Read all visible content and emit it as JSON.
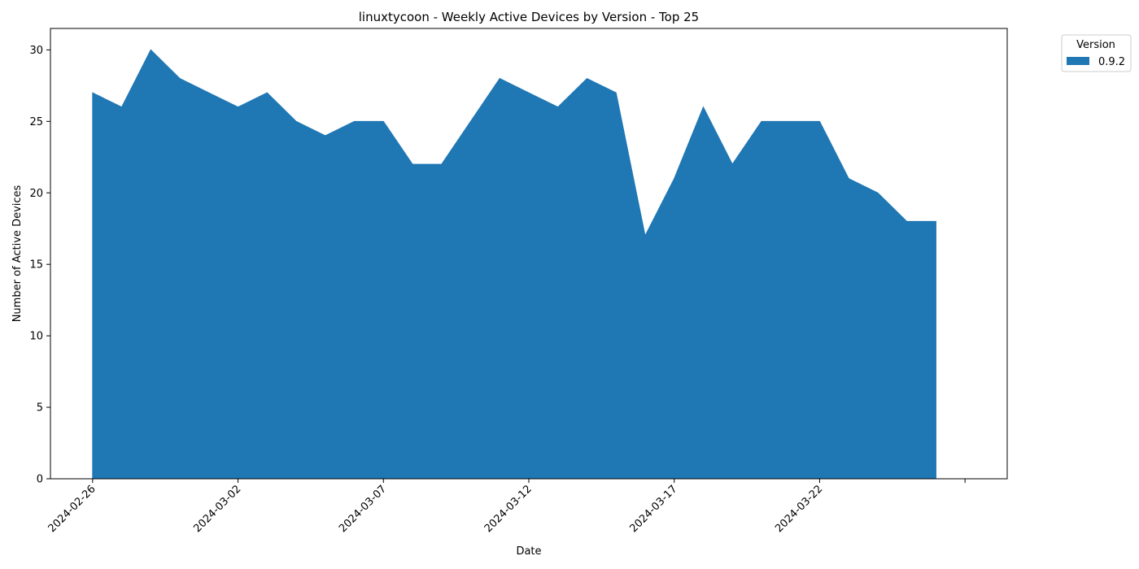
{
  "chart_data": {
    "type": "area",
    "title": "linuxtycoon - Weekly Active Devices by Version - Top 25",
    "xlabel": "Date",
    "ylabel": "Number of Active Devices",
    "x": [
      "2024-02-26",
      "2024-02-27",
      "2024-02-28",
      "2024-02-29",
      "2024-03-01",
      "2024-03-02",
      "2024-03-03",
      "2024-03-04",
      "2024-03-05",
      "2024-03-06",
      "2024-03-07",
      "2024-03-08",
      "2024-03-09",
      "2024-03-10",
      "2024-03-11",
      "2024-03-12",
      "2024-03-13",
      "2024-03-14",
      "2024-03-15",
      "2024-03-16",
      "2024-03-17",
      "2024-03-18",
      "2024-03-19",
      "2024-03-20",
      "2024-03-21",
      "2024-03-22",
      "2024-03-23",
      "2024-03-24",
      "2024-03-25",
      "2024-03-26"
    ],
    "series": [
      {
        "name": "0.9.2",
        "color": "#1f77b4",
        "values": [
          27,
          26,
          30,
          28,
          27,
          26,
          27,
          25,
          24,
          25,
          25,
          22,
          22,
          25,
          28,
          27,
          26,
          28,
          27,
          17,
          21,
          26,
          22,
          25,
          25,
          25,
          21,
          20,
          18,
          18
        ]
      }
    ],
    "xlim": [
      "2024-02-24.55",
      "2024-03-28.45"
    ],
    "xticks": [
      "2024-02-26",
      "2024-03-02",
      "2024-03-07",
      "2024-03-12",
      "2024-03-17",
      "2024-03-22",
      ""
    ],
    "yticks": [
      0,
      5,
      10,
      15,
      20,
      25,
      30
    ],
    "ylim": [
      0,
      31.5
    ],
    "legend": {
      "title": "Version",
      "position": "upper-right-outside"
    },
    "grid": false
  }
}
